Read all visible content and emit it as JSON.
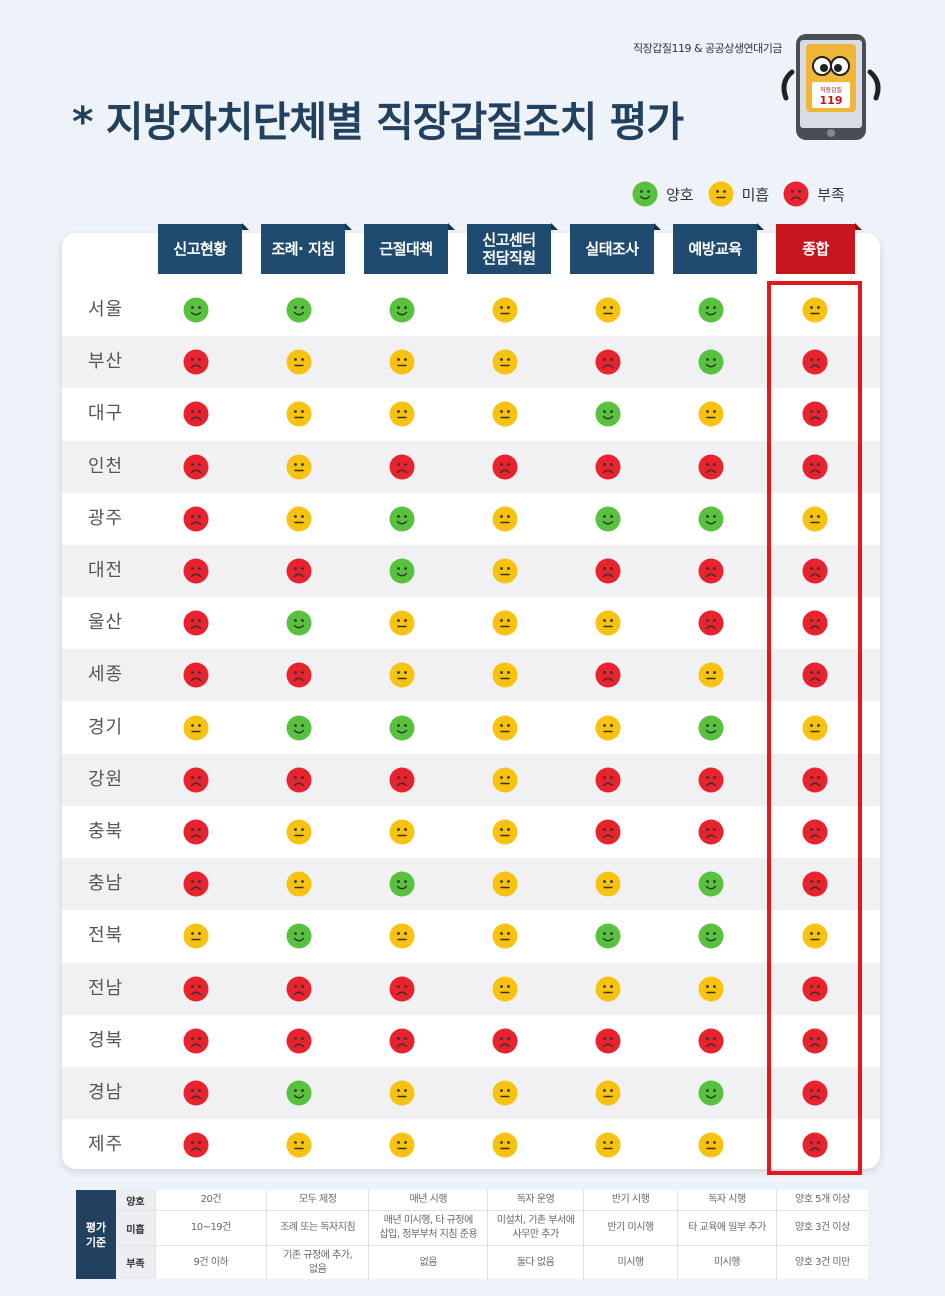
{
  "source": "직장갑질119 & 공공상생연대기금",
  "title": "* 지방자치단체별 직장갑질조치 평가",
  "mascot": {
    "label_top": "직장갑질",
    "label_num": "119"
  },
  "legend": [
    {
      "level": "good",
      "label": "양호",
      "icon": "smile-face-icon"
    },
    {
      "level": "fair",
      "label": "미흡",
      "icon": "neutral-face-icon"
    },
    {
      "level": "poor",
      "label": "부족",
      "icon": "frown-face-icon"
    }
  ],
  "colors": {
    "good": "#58c13e",
    "fair": "#f7c310",
    "poor": "#e8232e",
    "header": "#1f4b70",
    "total": "#c4161c"
  },
  "columns": [
    "신고현황",
    "조례· 지침",
    "근절대책",
    "신고센터\n전담직원",
    "실태조사",
    "예방교육",
    "종합"
  ],
  "rows": [
    {
      "region": "서울",
      "ratings": [
        "good",
        "good",
        "good",
        "fair",
        "fair",
        "good",
        "fair"
      ]
    },
    {
      "region": "부산",
      "ratings": [
        "poor",
        "fair",
        "fair",
        "fair",
        "poor",
        "good",
        "poor"
      ]
    },
    {
      "region": "대구",
      "ratings": [
        "poor",
        "fair",
        "fair",
        "fair",
        "good",
        "fair",
        "poor"
      ]
    },
    {
      "region": "인천",
      "ratings": [
        "poor",
        "fair",
        "poor",
        "poor",
        "poor",
        "poor",
        "poor"
      ]
    },
    {
      "region": "광주",
      "ratings": [
        "poor",
        "fair",
        "good",
        "fair",
        "good",
        "good",
        "fair"
      ]
    },
    {
      "region": "대전",
      "ratings": [
        "poor",
        "poor",
        "good",
        "fair",
        "poor",
        "poor",
        "poor"
      ]
    },
    {
      "region": "울산",
      "ratings": [
        "poor",
        "good",
        "fair",
        "fair",
        "fair",
        "poor",
        "poor"
      ]
    },
    {
      "region": "세종",
      "ratings": [
        "poor",
        "poor",
        "fair",
        "fair",
        "poor",
        "fair",
        "poor"
      ]
    },
    {
      "region": "경기",
      "ratings": [
        "fair",
        "good",
        "good",
        "fair",
        "fair",
        "good",
        "fair"
      ]
    },
    {
      "region": "강원",
      "ratings": [
        "poor",
        "poor",
        "poor",
        "fair",
        "poor",
        "poor",
        "poor"
      ]
    },
    {
      "region": "충북",
      "ratings": [
        "poor",
        "fair",
        "fair",
        "fair",
        "poor",
        "poor",
        "poor"
      ]
    },
    {
      "region": "충남",
      "ratings": [
        "poor",
        "fair",
        "good",
        "fair",
        "fair",
        "good",
        "poor"
      ]
    },
    {
      "region": "전북",
      "ratings": [
        "fair",
        "good",
        "fair",
        "fair",
        "good",
        "good",
        "fair"
      ]
    },
    {
      "region": "전남",
      "ratings": [
        "poor",
        "poor",
        "poor",
        "fair",
        "fair",
        "fair",
        "poor"
      ]
    },
    {
      "region": "경북",
      "ratings": [
        "poor",
        "poor",
        "poor",
        "poor",
        "poor",
        "poor",
        "poor"
      ]
    },
    {
      "region": "경남",
      "ratings": [
        "poor",
        "good",
        "fair",
        "fair",
        "fair",
        "good",
        "poor"
      ]
    },
    {
      "region": "제주",
      "ratings": [
        "poor",
        "fair",
        "fair",
        "fair",
        "fair",
        "fair",
        "poor"
      ]
    }
  ],
  "criteria": {
    "header": "평가\n기준",
    "levels": [
      {
        "label": "양호",
        "cells": [
          "20건",
          "모두 제정",
          "매년 시행",
          "독자 운영",
          "반기 시행",
          "독자 시행",
          "양호 5개 이상"
        ]
      },
      {
        "label": "미흡",
        "cells": [
          "10~19건",
          "조례 또는 독자지침",
          "매년 미시행, 타 규정에\n삽입, 정부부처 지침 준용",
          "미설치, 기존 부서에\n사무만 추가",
          "반기 미시행",
          "타 교육에 일부 추가",
          "양호 3건 이상"
        ]
      },
      {
        "label": "부족",
        "cells": [
          "9건 이하",
          "기존 규정에 추가,\n없음",
          "없음",
          "둘다 없음",
          "미시행",
          "미시행",
          "양호 3건 미만"
        ]
      }
    ]
  }
}
